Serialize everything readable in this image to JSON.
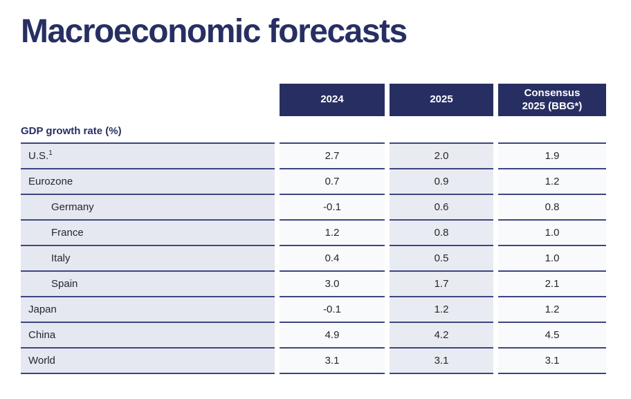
{
  "page": {
    "title": "Macroeconomic forecasts"
  },
  "colors": {
    "navy": "#272f62",
    "border": "#3c4480",
    "label_bg": "#e5e8f0",
    "shaded_bg": "#e9ebf2",
    "light_bg": "#f9fafb",
    "cell_text": "#26262b"
  },
  "table": {
    "section_label": "GDP growth rate (%)",
    "columns": [
      {
        "line1": "2024",
        "line2": ""
      },
      {
        "line1": "2025",
        "line2": ""
      },
      {
        "line1": "Consensus",
        "line2": "2025 (BBG*)"
      }
    ],
    "rows": [
      {
        "label": "U.S.",
        "sup": "1",
        "indent": false,
        "values": [
          "2.7",
          "2.0",
          "1.9"
        ]
      },
      {
        "label": "Eurozone",
        "indent": false,
        "values": [
          "0.7",
          "0.9",
          "1.2"
        ]
      },
      {
        "label": "Germany",
        "indent": true,
        "values": [
          "-0.1",
          "0.6",
          "0.8"
        ]
      },
      {
        "label": "France",
        "indent": true,
        "values": [
          "1.2",
          "0.8",
          "1.0"
        ]
      },
      {
        "label": "Italy",
        "indent": true,
        "values": [
          "0.4",
          "0.5",
          "1.0"
        ]
      },
      {
        "label": "Spain",
        "indent": true,
        "values": [
          "3.0",
          "1.7",
          "2.1"
        ]
      },
      {
        "label": "Japan",
        "indent": false,
        "values": [
          "-0.1",
          "1.2",
          "1.2"
        ]
      },
      {
        "label": "China",
        "indent": false,
        "values": [
          "4.9",
          "4.2",
          "4.5"
        ]
      },
      {
        "label": "World",
        "indent": false,
        "values": [
          "3.1",
          "3.1",
          "3.1"
        ]
      }
    ]
  },
  "chart_data": {
    "type": "table",
    "title": "Macroeconomic forecasts",
    "section": "GDP growth rate (%)",
    "categories": [
      "U.S.",
      "Eurozone",
      "Germany",
      "France",
      "Italy",
      "Spain",
      "Japan",
      "China",
      "World"
    ],
    "series": [
      {
        "name": "2024",
        "values": [
          2.7,
          0.7,
          -0.1,
          1.2,
          0.4,
          3.0,
          -0.1,
          4.9,
          3.1
        ]
      },
      {
        "name": "2025",
        "values": [
          2.0,
          0.9,
          0.6,
          0.8,
          0.5,
          1.7,
          1.2,
          4.2,
          3.1
        ]
      },
      {
        "name": "Consensus 2025 (BBG*)",
        "values": [
          1.9,
          1.2,
          0.8,
          1.0,
          1.0,
          2.1,
          1.2,
          4.5,
          3.1
        ]
      }
    ]
  }
}
